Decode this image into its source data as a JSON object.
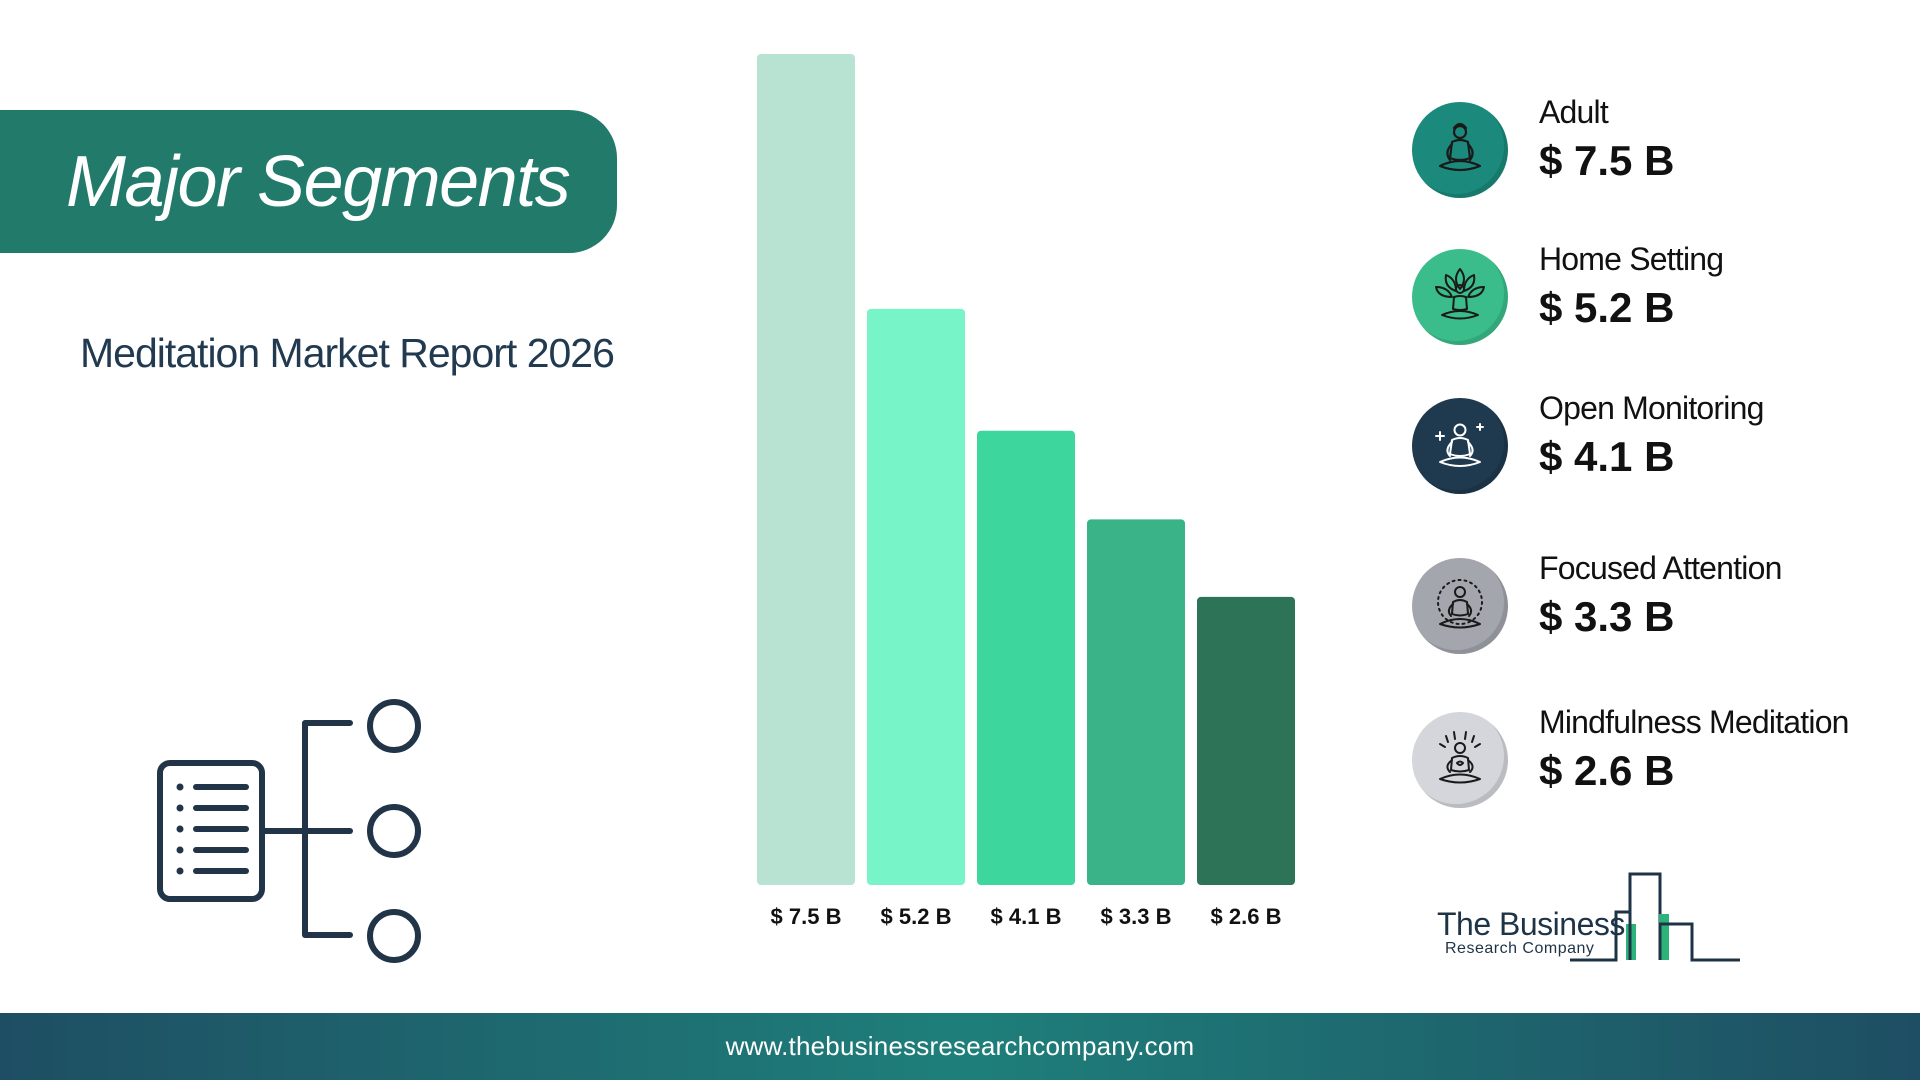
{
  "header": {
    "title": "Major Segments",
    "subtitle": "Meditation Market Report 2026"
  },
  "chart_data": {
    "type": "bar",
    "title": "",
    "xlabel": "",
    "ylabel": "",
    "categories": [
      "Adult",
      "Home Setting",
      "Open Monitoring",
      "Focused Attention",
      "Mindfulness Meditation"
    ],
    "values": [
      7.5,
      5.2,
      4.1,
      3.3,
      2.6
    ],
    "value_labels": [
      "$ 7.5 B",
      "$ 5.2 B",
      "$ 4.1 B",
      "$ 3.3 B",
      "$ 2.6 B"
    ],
    "colors": [
      "#b8e3d3",
      "#78f5c8",
      "#3dd69d",
      "#3bb388",
      "#2d7358"
    ],
    "ylim": [
      0,
      7.5
    ],
    "grid": false,
    "legend": "right"
  },
  "legend": {
    "items": [
      {
        "name": "Adult",
        "value": "$ 7.5 B",
        "icon": "meditation-person-icon",
        "color": "#1b8a7c"
      },
      {
        "name": "Home Setting",
        "value": "$ 5.2 B",
        "icon": "lotus-meditation-icon",
        "color": "#3bbd8b"
      },
      {
        "name": "Open Monitoring",
        "value": "$ 4.1 B",
        "icon": "sparkle-meditation-icon",
        "color": "#1f3a4f"
      },
      {
        "name": "Focused Attention",
        "value": "$ 3.3 B",
        "icon": "radiant-meditation-icon",
        "color": "#a3a6ad"
      },
      {
        "name": "Mindfulness Meditation",
        "value": "$ 2.6 B",
        "icon": "heart-meditation-icon",
        "color": "#d4d6db"
      }
    ]
  },
  "logo": {
    "name": "The Business",
    "sub": "Research Company"
  },
  "footer": {
    "url": "www.thebusinessresearchcompany.com"
  }
}
